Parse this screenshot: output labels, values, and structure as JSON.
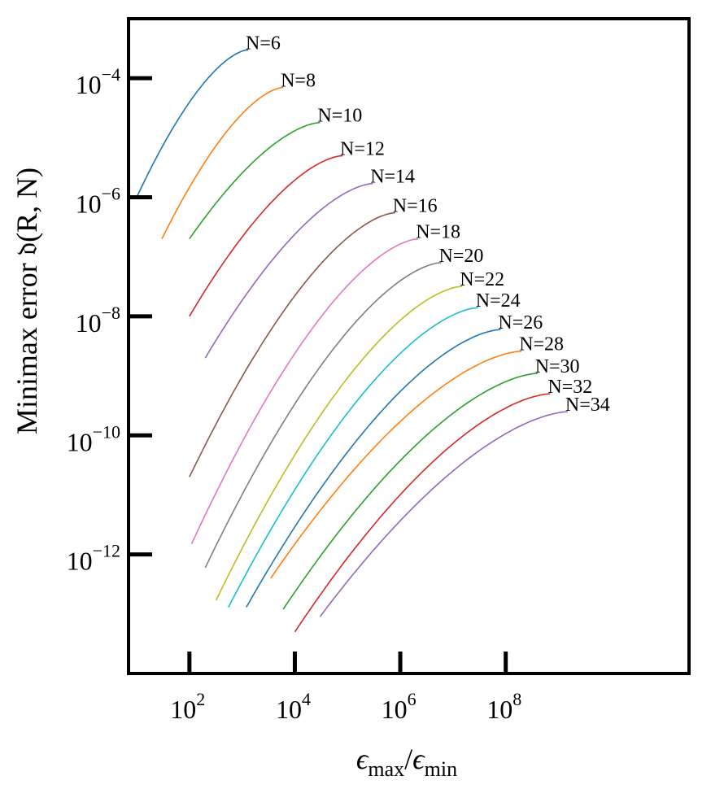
{
  "chart_data": {
    "type": "line",
    "title": "",
    "xlabel": "ϵmax/ϵmin",
    "xlabel_parts": {
      "base": "ϵ",
      "sub1": "max",
      "sep": "/",
      "base2": "ϵ",
      "sub2": "min"
    },
    "ylabel": "Minimax error 𝔡(R, N)",
    "x_scale": "log",
    "y_scale": "log",
    "xlim": [
      7,
      300000000000
    ],
    "ylim": [
      1e-14,
      0.001
    ],
    "grid": false,
    "legend": "none",
    "x_ticks": [
      {
        "value": 100,
        "base": "10",
        "exp": "2"
      },
      {
        "value": 10000,
        "base": "10",
        "exp": "4"
      },
      {
        "value": 1000000,
        "base": "10",
        "exp": "6"
      },
      {
        "value": 100000000,
        "base": "10",
        "exp": "8"
      }
    ],
    "y_ticks": [
      {
        "value": 0.0001,
        "base": "10",
        "exp": "−4"
      },
      {
        "value": 1e-06,
        "base": "10",
        "exp": "−6"
      },
      {
        "value": 1e-08,
        "base": "10",
        "exp": "−8"
      },
      {
        "value": 1e-10,
        "base": "10",
        "exp": "−10"
      },
      {
        "value": 1e-12,
        "base": "10",
        "exp": "−12"
      }
    ],
    "series": [
      {
        "name": "N=6",
        "color": "#1f77b4",
        "x_start": 10,
        "x_end": 1300,
        "y_start": 1e-06,
        "y_end": 0.0003
      },
      {
        "name": "N=8",
        "color": "#ff7f0e",
        "x_start": 30,
        "x_end": 6000,
        "y_start": 2e-07,
        "y_end": 7e-05
      },
      {
        "name": "N=10",
        "color": "#2ca02c",
        "x_start": 100,
        "x_end": 30000,
        "y_start": 2e-07,
        "y_end": 1.8e-05
      },
      {
        "name": "N=12",
        "color": "#d62728",
        "x_start": 100,
        "x_end": 80000,
        "y_start": 1e-08,
        "y_end": 5e-06
      },
      {
        "name": "N=14",
        "color": "#9467bd",
        "x_start": 200,
        "x_end": 300000,
        "y_start": 2e-09,
        "y_end": 1.7e-06
      },
      {
        "name": "N=16",
        "color": "#8c564b",
        "x_start": 100,
        "x_end": 800000,
        "y_start": 2e-11,
        "y_end": 5.5e-07
      },
      {
        "name": "N=18",
        "color": "#e377c2",
        "x_start": 110,
        "x_end": 2200000,
        "y_start": 1.5e-12,
        "y_end": 2e-07
      },
      {
        "name": "N=20",
        "color": "#7f7f7f",
        "x_start": 200,
        "x_end": 6000000,
        "y_start": 6e-13,
        "y_end": 8e-08
      },
      {
        "name": "N=22",
        "color": "#bcbd22",
        "x_start": 320,
        "x_end": 15000000,
        "y_start": 1.7e-13,
        "y_end": 3.2e-08
      },
      {
        "name": "N=24",
        "color": "#17becf",
        "x_start": 550,
        "x_end": 30000000,
        "y_start": 1.3e-13,
        "y_end": 1.4e-08
      },
      {
        "name": "N=26",
        "color": "#1f77b4",
        "x_start": 1200,
        "x_end": 80000000,
        "y_start": 1.3e-13,
        "y_end": 6e-09
      },
      {
        "name": "N=28",
        "color": "#ff7f0e",
        "x_start": 3500,
        "x_end": 200000000,
        "y_start": 4e-13,
        "y_end": 2.6e-09
      },
      {
        "name": "N=30",
        "color": "#2ca02c",
        "x_start": 6000,
        "x_end": 400000000,
        "y_start": 1.2e-13,
        "y_end": 1.1e-09
      },
      {
        "name": "N=32",
        "color": "#d62728",
        "x_start": 10000,
        "x_end": 700000000,
        "y_start": 5e-14,
        "y_end": 5e-10
      },
      {
        "name": "N=34",
        "color": "#9467bd",
        "x_start": 30000,
        "x_end": 1500000000,
        "y_start": 9e-14,
        "y_end": 2.5e-10
      }
    ]
  }
}
